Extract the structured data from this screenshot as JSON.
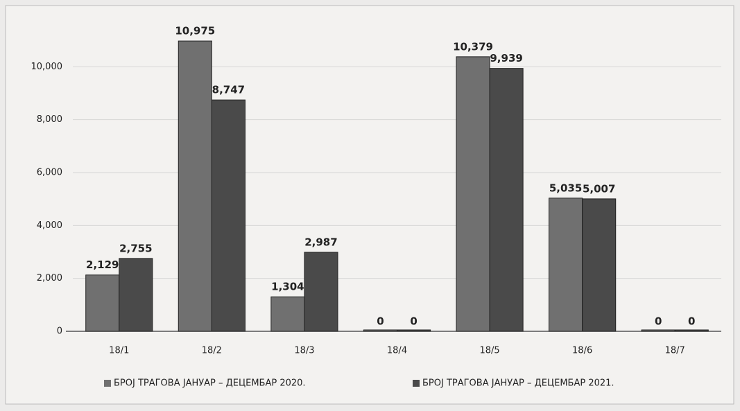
{
  "chart_data": {
    "type": "bar",
    "categories": [
      "18/1",
      "18/2",
      "18/3",
      "18/4",
      "18/5",
      "18/6",
      "18/7"
    ],
    "series": [
      {
        "name": "БРОЈ ТРАГОВА ЈАНУАР – ДЕЦЕМБАР 2020.",
        "color": "#707070",
        "values": [
          2129,
          10975,
          1304,
          0,
          10379,
          5035,
          0
        ],
        "value_labels": [
          "2,129",
          "10,975",
          "1,304",
          "0",
          "10,379",
          "5,035",
          "0"
        ]
      },
      {
        "name": "БРОЈ ТРАГОВА ЈАНУАР – ДЕЦЕМБАР 2021.",
        "color": "#4a4a4a",
        "values": [
          2755,
          8747,
          2987,
          0,
          9939,
          5007,
          0
        ],
        "value_labels": [
          "2,755",
          "8,747",
          "2,987",
          "0",
          "9,939",
          "5,007",
          "0"
        ]
      }
    ],
    "ylim": [
      0,
      12000
    ],
    "yticks": [
      0,
      {
        "value": 2000,
        "label": "2,000"
      },
      {
        "value": 4000,
        "label": "4,000"
      },
      {
        "value": 6000,
        "label": "6,000"
      },
      {
        "value": 8000,
        "label": "8,000"
      },
      {
        "value": 10000,
        "label": "10,000"
      }
    ],
    "grid": true,
    "legend": "bottom"
  }
}
